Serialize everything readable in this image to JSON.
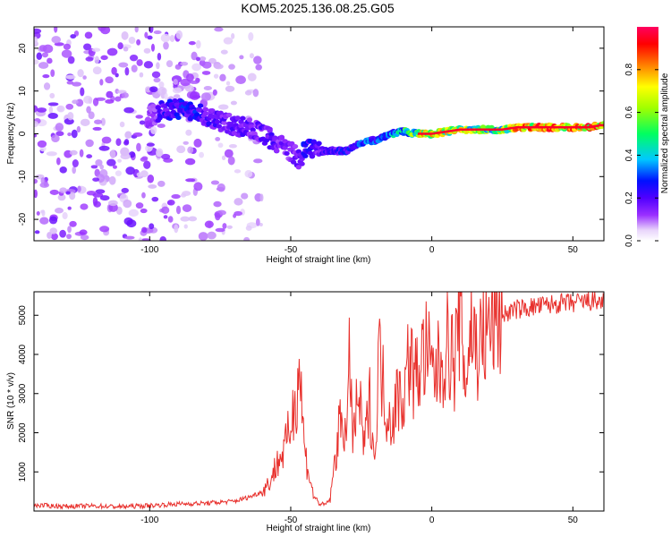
{
  "title": "KOM5.2025.136.08.25.G05",
  "chart_data": [
    {
      "type": "heatmap",
      "title": "KOM5.2025.136.08.25.G05",
      "xlabel": "Height of straight line (km)",
      "ylabel": "Frequency (Hz)",
      "xlim": [
        -141,
        61
      ],
      "ylim": [
        -25,
        25
      ],
      "xticks": [
        -100,
        -50,
        0,
        50
      ],
      "yticks": [
        -20,
        -10,
        0,
        10,
        20
      ],
      "colorbar": {
        "label": "Normalized spectral amplitude",
        "range": [
          0,
          1
        ],
        "ticks": [
          "0.0",
          "0.2",
          "0.4",
          "0.6",
          "0.8"
        ],
        "colormap": [
          "#ffffff",
          "#d8b8f8",
          "#9a30ff",
          "#5000ff",
          "#0010ff",
          "#00c8ff",
          "#00ff60",
          "#a0ff00",
          "#ffff00",
          "#ff8000",
          "#ff0000",
          "#ff0060"
        ]
      },
      "ridge": {
        "x": [
          -100,
          -95,
          -90,
          -85,
          -80,
          -75,
          -70,
          -65,
          -60,
          -55,
          -50,
          -47,
          -45,
          -42,
          -40,
          -35,
          -30,
          -25,
          -20,
          -15,
          -10,
          -5,
          0,
          5,
          10,
          15,
          20,
          25,
          30,
          35,
          40,
          45,
          50,
          55,
          60
        ],
        "frequency": [
          4,
          5.5,
          6,
          5,
          4,
          3,
          2,
          1.5,
          0,
          -2,
          -4,
          -6,
          -4,
          -3,
          -4,
          -4,
          -4,
          -2,
          -1.5,
          0,
          0.5,
          0,
          0,
          0.5,
          1,
          1,
          1,
          1,
          1.5,
          1.5,
          1.5,
          1.5,
          1.5,
          1.5,
          2
        ],
        "amplitude": [
          0.2,
          0.35,
          0.4,
          0.4,
          0.35,
          0.3,
          0.3,
          0.3,
          0.3,
          0.3,
          0.25,
          0.3,
          0.4,
          0.35,
          0.3,
          0.35,
          0.4,
          0.45,
          0.45,
          0.5,
          0.6,
          0.75,
          0.95,
          0.8,
          0.8,
          0.75,
          0.7,
          0.7,
          0.9,
          0.95,
          0.95,
          0.95,
          0.95,
          0.95,
          0.95
        ]
      },
      "noise_region": {
        "x_range": [
          -141,
          -60
        ],
        "amplitude_range": [
          0.05,
          0.25
        ]
      }
    },
    {
      "type": "line",
      "xlabel": "Height of straight line (km)",
      "ylabel": "SNR (10 * v/v)",
      "xlim": [
        -141,
        61
      ],
      "ylim": [
        0,
        5600
      ],
      "xticks": [
        -100,
        -50,
        0,
        50
      ],
      "yticks": [
        1000,
        2000,
        3000,
        4000,
        5000
      ],
      "color": "#e8302c",
      "series": [
        {
          "x": [
            -141,
            -130,
            -120,
            -110,
            -100,
            -90,
            -80,
            -70,
            -65,
            -60,
            -57,
            -55,
            -52,
            -50,
            -48,
            -47,
            -45,
            -42,
            -40,
            -38,
            -36,
            -34,
            -32,
            -30,
            -29,
            -28,
            -26,
            -24,
            -22,
            -20,
            -19,
            -18,
            -16,
            -14,
            -12,
            -10,
            -8,
            -6,
            -4,
            -2,
            0,
            2,
            4,
            6,
            8,
            10,
            12,
            14,
            16,
            18,
            20,
            22,
            25,
            28,
            30,
            35,
            40,
            45,
            50,
            55,
            61
          ],
          "y": [
            150,
            120,
            130,
            110,
            140,
            180,
            200,
            250,
            350,
            500,
            800,
            1200,
            1600,
            2200,
            3000,
            3800,
            1500,
            400,
            200,
            150,
            300,
            1500,
            2500,
            1800,
            4300,
            1700,
            3000,
            1600,
            2800,
            1200,
            4200,
            3600,
            2600,
            2300,
            3000,
            2900,
            4000,
            3300,
            3800,
            4100,
            3500,
            3600,
            3900,
            4300,
            3700,
            5100,
            3300,
            4800,
            4100,
            4400,
            4600,
            4900,
            5000,
            5100,
            5150,
            5200,
            5250,
            5300,
            5300,
            5350,
            5350
          ]
        }
      ]
    }
  ]
}
